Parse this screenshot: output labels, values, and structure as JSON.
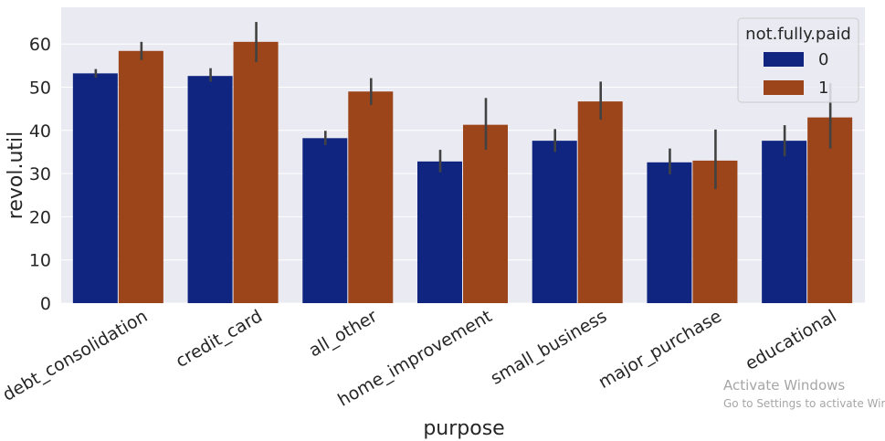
{
  "chart_data": {
    "type": "bar",
    "xlabel": "purpose",
    "ylabel": "revol.util",
    "ylim": [
      0,
      68
    ],
    "yticks": [
      0,
      10,
      20,
      30,
      40,
      50,
      60
    ],
    "grid": true,
    "legend": {
      "title": "not.fully.paid",
      "placement": "top-right"
    },
    "categories": [
      "debt_consolidation",
      "credit_card",
      "all_other",
      "home_improvement",
      "small_business",
      "major_purchase",
      "educational"
    ],
    "series": [
      {
        "name": "0",
        "color": "#0f2580",
        "values": [
          53.2,
          52.6,
          38.2,
          32.8,
          37.6,
          32.6,
          37.6
        ],
        "ci_low": [
          52.2,
          51.3,
          36.6,
          30.3,
          35.0,
          29.8,
          34.0
        ],
        "ci_high": [
          54.2,
          54.4,
          39.9,
          35.5,
          40.3,
          35.8,
          41.2
        ]
      },
      {
        "name": "1",
        "color": "#9c441a",
        "values": [
          58.4,
          60.5,
          49.0,
          41.3,
          46.7,
          33.0,
          43.0
        ],
        "ci_low": [
          56.3,
          55.8,
          45.9,
          35.5,
          42.5,
          26.4,
          35.8
        ],
        "ci_high": [
          60.5,
          65.1,
          52.1,
          47.5,
          51.3,
          40.2,
          50.9
        ]
      }
    ]
  },
  "watermark": {
    "title": "Activate Windows",
    "subtitle": "Go to Settings to activate Wir"
  }
}
